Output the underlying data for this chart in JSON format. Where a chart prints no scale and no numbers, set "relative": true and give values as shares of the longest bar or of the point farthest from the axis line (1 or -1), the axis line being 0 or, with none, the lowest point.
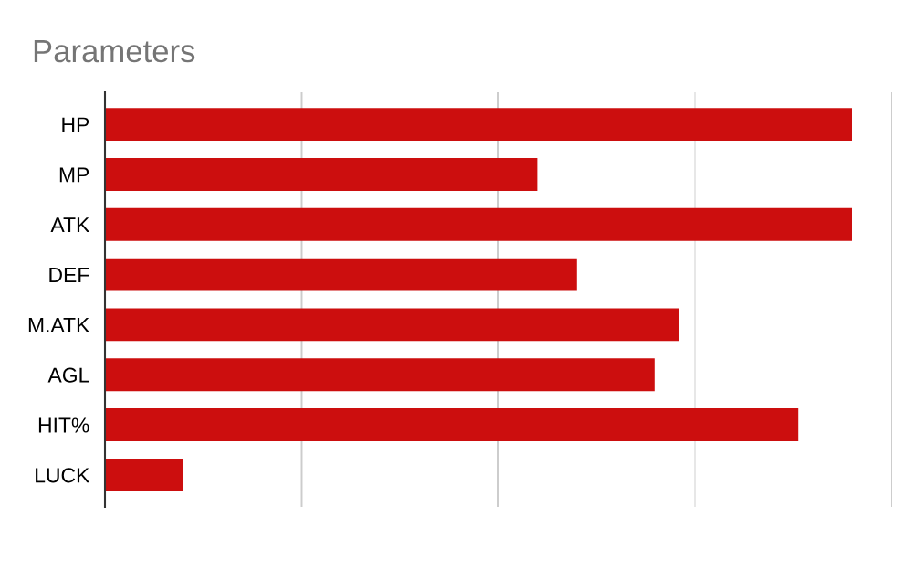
{
  "chart_data": {
    "type": "bar",
    "orientation": "horizontal",
    "relative": true,
    "title": "Parameters",
    "categories": [
      "HP",
      "MP",
      "ATK",
      "DEF",
      "M.ATK",
      "AGL",
      "HIT%",
      "LUCK"
    ],
    "values": [
      1,
      0.578,
      1,
      0.631,
      0.768,
      0.736,
      0.927,
      0.104
    ],
    "color": "#cc0e0e",
    "grid": "x",
    "tick_labels": "y"
  }
}
